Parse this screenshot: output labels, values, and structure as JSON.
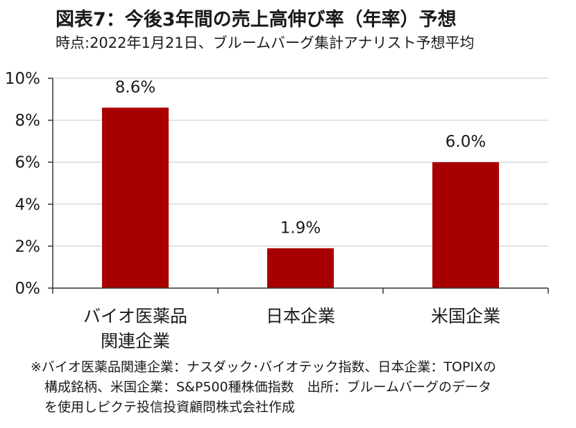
{
  "title": "図表7：今後3年間の売上高伸び率（年率）予想",
  "subtitle": "時点:2022年1月21日、ブルームバーグ集計アナリスト予想平均",
  "chart_data": {
    "type": "bar",
    "categories": [
      [
        "バイオ医薬品",
        "関連企業"
      ],
      [
        "日本企業"
      ],
      [
        "米国企業"
      ]
    ],
    "values": [
      8.6,
      1.9,
      6.0
    ],
    "data_labels": [
      "8.6%",
      "1.9%",
      "6.0%"
    ],
    "ylim": [
      0,
      10
    ],
    "yticks": [
      "0%",
      "2%",
      "4%",
      "6%",
      "8%",
      "10%"
    ],
    "bar_color": "#a80000",
    "grid": true
  },
  "notes": [
    "※バイオ医薬品関連企業：ナスダック･バイオテック指数、日本企業：TOPIXの",
    "構成銘柄、米国企業：S&P500種株価指数　出所：ブルームバーグのデータ",
    "を使用しピクテ投信投資顧問株式会社作成"
  ]
}
